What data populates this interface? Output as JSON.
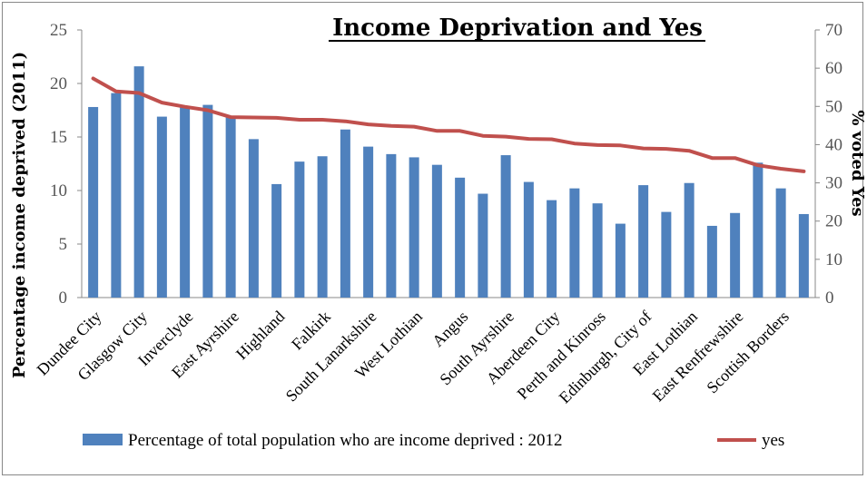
{
  "chart_data": {
    "type": "bar",
    "title": "Income Deprivation and Yes",
    "ylabel": "Percentage income deprived (2011)",
    "y2label": "% voted Yes",
    "xlabel": "",
    "ylim": [
      0,
      25
    ],
    "y2lim": [
      0,
      70
    ],
    "yticks": [
      "0",
      "5",
      "10",
      "15",
      "20",
      "25"
    ],
    "y2ticks": [
      "0",
      "10",
      "20",
      "30",
      "40",
      "50",
      "60",
      "70"
    ],
    "category_labels": [
      "Dundee City",
      "Glasgow City",
      "Inverclyde",
      "East Ayrshire",
      "Highland",
      "Falkirk",
      "South Lanarkshire",
      "West Lothian",
      "Angus",
      "South Ayrshire",
      "Aberdeen City",
      "Perth and Kinross",
      "Edinburgh, City of",
      "East Lothian",
      "East Renfrewshire",
      "Scottish Borders"
    ],
    "n_bars": 32,
    "series": [
      {
        "name": "Percentage of total population who are income deprived : 2012",
        "type": "bar",
        "axis": "left",
        "color": "#4f81bd",
        "values": [
          17.8,
          19.1,
          21.6,
          16.9,
          17.9,
          18.0,
          16.9,
          14.8,
          10.6,
          12.7,
          13.2,
          15.7,
          14.1,
          13.4,
          13.1,
          12.4,
          11.2,
          9.7,
          13.3,
          10.8,
          9.1,
          10.2,
          8.8,
          6.9,
          10.5,
          8.0,
          10.7,
          6.7,
          7.9,
          12.6,
          10.2,
          7.8
        ]
      },
      {
        "name": "yes",
        "type": "line",
        "axis": "right",
        "color": "#c0504d",
        "values": [
          57.3,
          53.9,
          53.5,
          51.0,
          49.9,
          49.0,
          47.2,
          47.1,
          47.0,
          46.5,
          46.5,
          46.1,
          45.3,
          44.9,
          44.7,
          43.6,
          43.6,
          42.3,
          42.1,
          41.5,
          41.4,
          40.3,
          39.9,
          39.8,
          39.0,
          38.9,
          38.4,
          36.5,
          36.5,
          34.6,
          33.7,
          33.0
        ]
      }
    ],
    "legend": "bottom",
    "grid": false
  }
}
